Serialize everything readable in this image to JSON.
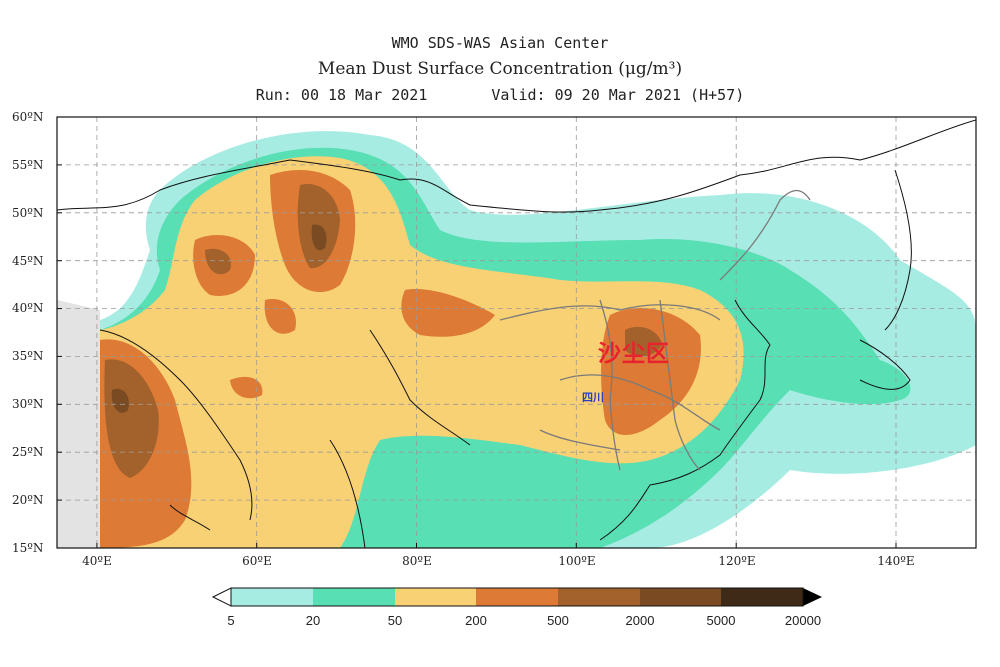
{
  "header": {
    "center": "WMO SDS-WAS Asian Center",
    "title": "Mean Dust Surface Concentration (μg/m³)",
    "run": "Run: 00 18 Mar 2021",
    "valid": "Valid: 09 20 Mar 2021 (H+57)"
  },
  "axes": {
    "lat_labels": [
      "60ºN",
      "55ºN",
      "50ºN",
      "45ºN",
      "40ºN",
      "35ºN",
      "30ºN",
      "25ºN",
      "20ºN",
      "15ºN"
    ],
    "lon_labels": [
      "40ºE",
      "60ºE",
      "80ºE",
      "100ºE",
      "120ºE",
      "140ºE"
    ],
    "lat_range": [
      15,
      60
    ],
    "lon_range": [
      35,
      150
    ],
    "grid": "dashed"
  },
  "map_labels": {
    "dust_region": "沙尘区",
    "province": "四川"
  },
  "colorbar": {
    "labels": [
      "5",
      "20",
      "50",
      "200",
      "500",
      "2000",
      "5000",
      "20000"
    ],
    "colors": [
      "#a7ece3",
      "#58dfb4",
      "#f9d175",
      "#dd7a35",
      "#a3622b",
      "#7a4a23",
      "#3e2a17"
    ]
  }
}
